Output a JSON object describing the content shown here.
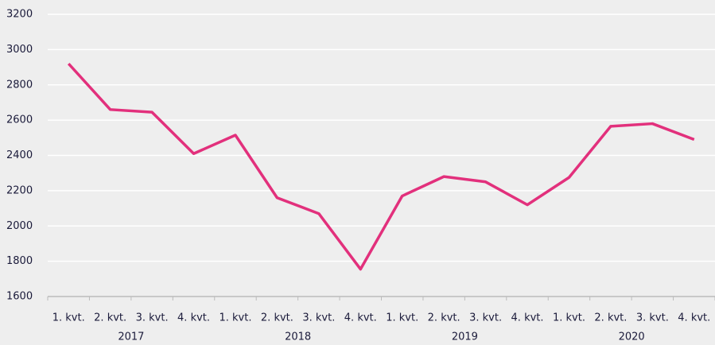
{
  "chart_data": {
    "type": "line",
    "categories": [
      "1. kvt.",
      "2. kvt.",
      "3. kvt.",
      "4. kvt.",
      "1. kvt.",
      "2. kvt.",
      "3. kvt.",
      "4. kvt.",
      "1. kvt.",
      "2. kvt.",
      "3. kvt.",
      "4. kvt.",
      "1. kvt.",
      "2. kvt.",
      "3. kvt.",
      "4. kvt."
    ],
    "category_groups": [
      "2017",
      "2018",
      "2019",
      "2020"
    ],
    "series": [
      {
        "color": "#e2307c",
        "values": [
          2920,
          2660,
          2645,
          2410,
          2515,
          2160,
          2070,
          1755,
          2170,
          2280,
          2250,
          2120,
          2275,
          2565,
          2580,
          2490
        ]
      }
    ],
    "ylim": [
      1600,
      3200
    ],
    "yticks": [
      1600,
      1800,
      2000,
      2200,
      2400,
      2600,
      2800,
      3000,
      3200
    ],
    "grid": true
  }
}
